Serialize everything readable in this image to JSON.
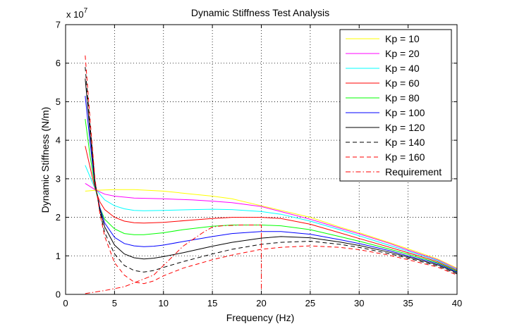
{
  "chart_data": {
    "type": "line",
    "title": "Dynamic Stiffness Test Analysis",
    "xlabel": "Frequency (Hz)",
    "ylabel": "Dynamic Stiffness (N/m)",
    "y_exponent_label": "x 10",
    "y_exponent_power": "7",
    "y_multiplier": 10000000,
    "xlim": [
      0,
      40
    ],
    "ylim": [
      0,
      7
    ],
    "xticks": [
      0,
      5,
      10,
      15,
      20,
      25,
      30,
      35,
      40
    ],
    "yticks": [
      0,
      1,
      2,
      3,
      4,
      5,
      6,
      7
    ],
    "grid": true,
    "legend_position": "top-right",
    "series": [
      {
        "name": "Kp = 10",
        "color": "#ffff00",
        "dash": "solid",
        "x": [
          2,
          3,
          5,
          7,
          10,
          13,
          15,
          17,
          20,
          22,
          25,
          28,
          30,
          33,
          35,
          38,
          40
        ],
        "y": [
          2.68,
          2.7,
          2.72,
          2.72,
          2.68,
          2.6,
          2.55,
          2.48,
          2.3,
          2.18,
          2.0,
          1.75,
          1.6,
          1.35,
          1.18,
          0.92,
          0.68
        ]
      },
      {
        "name": "Kp = 20",
        "color": "#ff00ff",
        "dash": "solid",
        "x": [
          2,
          3,
          4,
          5,
          7,
          10,
          13,
          15,
          17,
          20,
          22,
          25,
          28,
          30,
          33,
          35,
          38,
          40
        ],
        "y": [
          2.88,
          2.72,
          2.6,
          2.55,
          2.5,
          2.48,
          2.45,
          2.42,
          2.38,
          2.28,
          2.15,
          1.95,
          1.72,
          1.57,
          1.33,
          1.15,
          0.9,
          0.66
        ]
      },
      {
        "name": "Kp = 40",
        "color": "#00ffff",
        "dash": "solid",
        "x": [
          2,
          2.5,
          3,
          4,
          5,
          6,
          7,
          8,
          10,
          13,
          15,
          17,
          20,
          22,
          25,
          28,
          30,
          33,
          35,
          38,
          40
        ],
        "y": [
          3.35,
          3.05,
          2.75,
          2.45,
          2.3,
          2.22,
          2.18,
          2.17,
          2.18,
          2.2,
          2.21,
          2.2,
          2.15,
          2.08,
          1.9,
          1.68,
          1.52,
          1.28,
          1.12,
          0.88,
          0.64
        ]
      },
      {
        "name": "Kp = 60",
        "color": "#ff0000",
        "dash": "solid",
        "x": [
          2,
          2.5,
          3,
          3.5,
          4,
          5,
          6,
          7,
          8,
          10,
          13,
          15,
          17,
          20,
          22,
          25,
          28,
          30,
          33,
          35,
          38,
          40
        ],
        "y": [
          3.85,
          3.3,
          2.75,
          2.4,
          2.2,
          2.0,
          1.9,
          1.86,
          1.85,
          1.87,
          1.93,
          1.97,
          2.0,
          2.0,
          1.97,
          1.82,
          1.6,
          1.45,
          1.23,
          1.08,
          0.85,
          0.62
        ]
      },
      {
        "name": "Kp = 80",
        "color": "#00ff00",
        "dash": "solid",
        "x": [
          2,
          2.5,
          3,
          3.5,
          4,
          5,
          6,
          7,
          8,
          10,
          12,
          15,
          17,
          20,
          22,
          25,
          28,
          30,
          33,
          35,
          38,
          40
        ],
        "y": [
          4.55,
          3.6,
          2.8,
          2.25,
          1.95,
          1.7,
          1.58,
          1.55,
          1.55,
          1.6,
          1.68,
          1.77,
          1.8,
          1.8,
          1.78,
          1.68,
          1.5,
          1.38,
          1.18,
          1.04,
          0.82,
          0.6
        ]
      },
      {
        "name": "Kp = 100",
        "color": "#0000ff",
        "dash": "solid",
        "x": [
          2,
          2.5,
          3,
          3.5,
          4,
          5,
          6,
          7,
          8,
          9,
          10,
          12,
          15,
          17,
          20,
          22,
          25,
          28,
          30,
          33,
          35,
          38,
          40
        ],
        "y": [
          5.15,
          3.95,
          2.85,
          2.25,
          1.85,
          1.48,
          1.32,
          1.26,
          1.24,
          1.25,
          1.28,
          1.37,
          1.5,
          1.58,
          1.63,
          1.63,
          1.56,
          1.42,
          1.32,
          1.14,
          1.0,
          0.8,
          0.58
        ]
      },
      {
        "name": "Kp = 120",
        "color": "#000000",
        "dash": "solid",
        "x": [
          2,
          2.5,
          3,
          3.5,
          4,
          5,
          6,
          7,
          8,
          9,
          10,
          12,
          15,
          17,
          20,
          22,
          25,
          28,
          30,
          33,
          35,
          38,
          40
        ],
        "y": [
          5.6,
          4.2,
          2.9,
          2.2,
          1.75,
          1.28,
          1.05,
          0.95,
          0.92,
          0.94,
          0.98,
          1.08,
          1.25,
          1.35,
          1.46,
          1.5,
          1.47,
          1.36,
          1.27,
          1.1,
          0.97,
          0.77,
          0.56
        ]
      },
      {
        "name": "Kp = 140",
        "color": "#000000",
        "dash": "dashed",
        "x": [
          2,
          2.5,
          3,
          3.5,
          4,
          5,
          6,
          7,
          8,
          9,
          10,
          12,
          15,
          17,
          20,
          22,
          25,
          28,
          30,
          33,
          35,
          38,
          40
        ],
        "y": [
          5.9,
          4.4,
          2.95,
          2.15,
          1.6,
          1.05,
          0.75,
          0.62,
          0.58,
          0.62,
          0.7,
          0.85,
          1.05,
          1.17,
          1.3,
          1.35,
          1.38,
          1.3,
          1.22,
          1.06,
          0.94,
          0.74,
          0.53
        ]
      },
      {
        "name": "Kp = 160",
        "color": "#ff0000",
        "dash": "dashed",
        "x": [
          2,
          2.5,
          3,
          3.5,
          4,
          5,
          6,
          7,
          8,
          9,
          10,
          12,
          15,
          17,
          20,
          22,
          25,
          28,
          30,
          33,
          35,
          38,
          40
        ],
        "y": [
          6.2,
          4.55,
          3.0,
          2.1,
          1.5,
          0.82,
          0.5,
          0.32,
          0.28,
          0.35,
          0.48,
          0.68,
          0.9,
          1.02,
          1.17,
          1.22,
          1.26,
          1.22,
          1.16,
          1.02,
          0.9,
          0.71,
          0.5
        ]
      },
      {
        "name": "Requirement",
        "color": "#ff0000",
        "dash": "dashdot",
        "x": [
          2,
          4,
          6,
          7,
          8,
          9,
          10,
          12,
          14,
          15,
          16,
          18,
          20,
          20,
          20
        ],
        "y": [
          0.02,
          0.1,
          0.2,
          0.3,
          0.4,
          0.5,
          0.75,
          1.25,
          1.6,
          1.75,
          1.78,
          1.8,
          1.8,
          1.4,
          0.0
        ]
      }
    ]
  }
}
